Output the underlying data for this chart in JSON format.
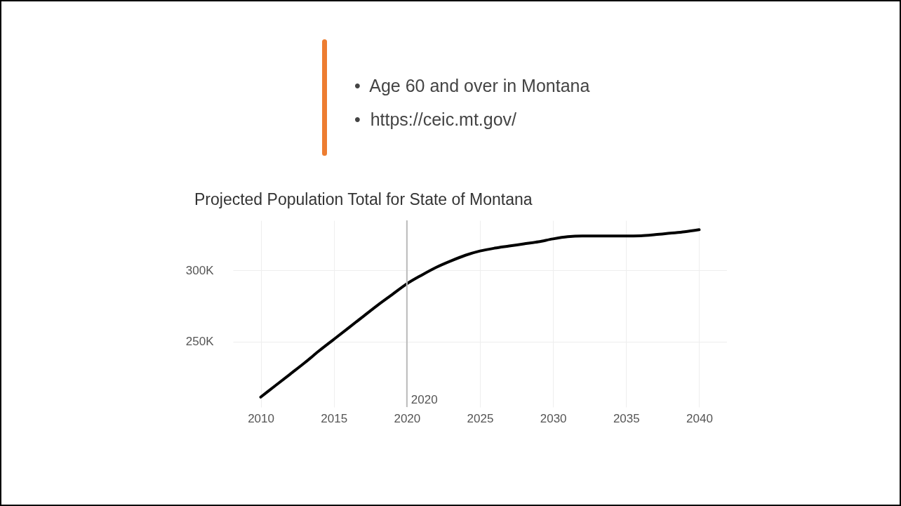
{
  "chart_data": {
    "type": "line",
    "title": "Projected Population Total for State of Montana",
    "annotations": [
      "•  Age 60 and over in Montana",
      "•  https://ceic.mt.gov/"
    ],
    "x": [
      2010,
      2011,
      2012,
      2013,
      2014,
      2015,
      2016,
      2017,
      2018,
      2019,
      2020,
      2021,
      2022,
      2023,
      2024,
      2025,
      2026,
      2027,
      2028,
      2029,
      2030,
      2031,
      2032,
      2033,
      2034,
      2035,
      2036,
      2037,
      2038,
      2039,
      2040
    ],
    "series": [
      {
        "color": "#000000",
        "values": [
          211000,
          219000,
          227000,
          235000,
          243500,
          251500,
          259500,
          267500,
          275500,
          283000,
          290500,
          296500,
          302000,
          306500,
          310500,
          313500,
          315500,
          317000,
          318500,
          320000,
          322000,
          323500,
          324000,
          324000,
          324000,
          324000,
          324200,
          325000,
          326000,
          327000,
          328500
        ]
      }
    ],
    "xlim": [
      2008.1,
      2041.9
    ],
    "xticks": [
      2010,
      2015,
      2020,
      2025,
      2030,
      2035,
      2040
    ],
    "ylim": [
      204000,
      335000
    ],
    "yticks": [
      {
        "value": 250000,
        "label": "250K"
      },
      {
        "value": 300000,
        "label": "300K"
      }
    ],
    "ref_lines": [
      {
        "axis": "x",
        "value": 2020,
        "label": "2020",
        "color": "#bbbbbb"
      }
    ],
    "grid": true
  }
}
